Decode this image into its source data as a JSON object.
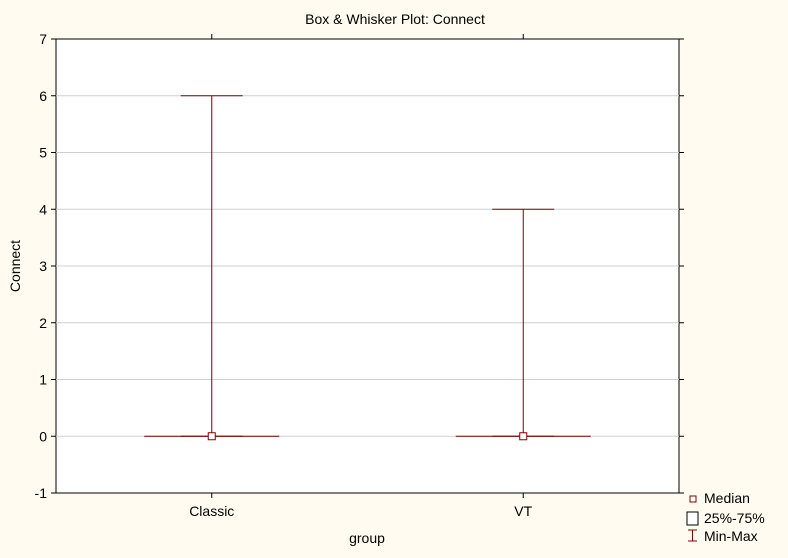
{
  "chart_data": {
    "type": "box",
    "title": "Box & Whisker Plot:  Connect",
    "xlabel": "group",
    "ylabel": "Connect",
    "categories": [
      "Classic",
      "VT"
    ],
    "boxes": [
      {
        "category": "Classic",
        "median": 0,
        "q1": 0,
        "q3": 0,
        "min": 0,
        "max": 6
      },
      {
        "category": "VT",
        "median": 0,
        "q1": 0,
        "q3": 0,
        "min": 0,
        "max": 4
      }
    ],
    "ylim": [
      -1,
      7
    ],
    "yticks": [
      "-1",
      "0",
      "1",
      "2",
      "3",
      "4",
      "5",
      "6",
      "7"
    ],
    "grid": true,
    "legend_position": "bottom-right",
    "legend": [
      "Median",
      "25%-75%",
      "Min-Max"
    ],
    "colors": {
      "series": "#800000",
      "background": "#fffbf0",
      "plot": "#ffffff",
      "grid": "#d0d0d0",
      "axis": "#000000"
    }
  }
}
